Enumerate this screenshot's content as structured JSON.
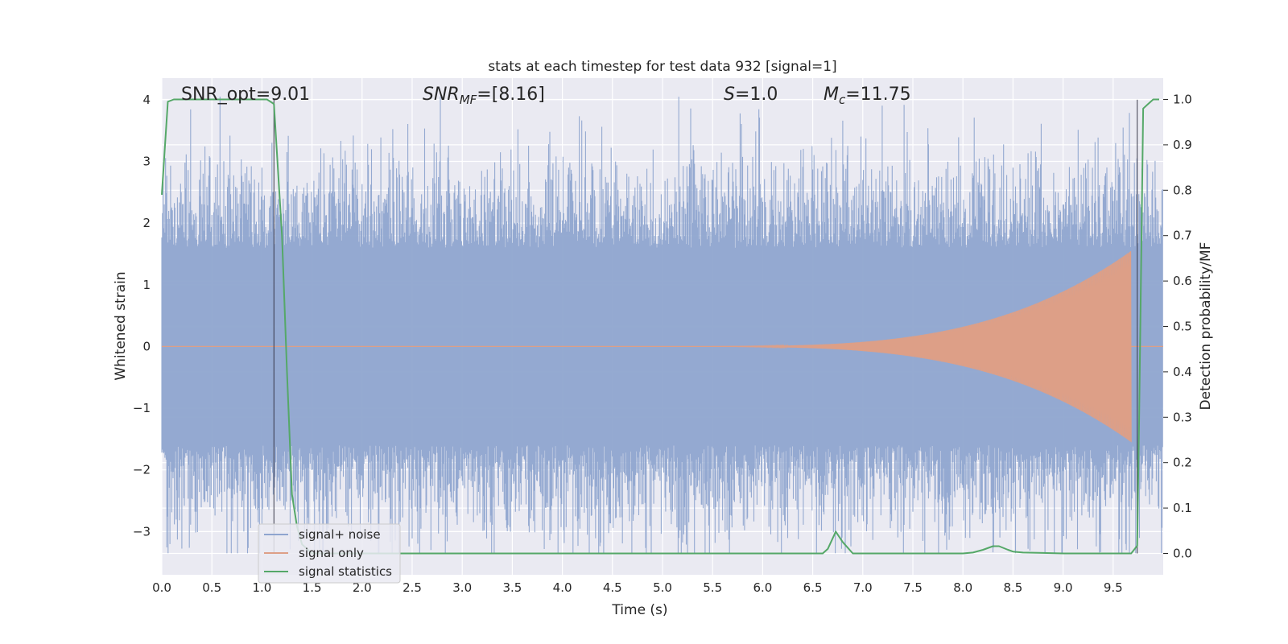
{
  "chart_data": {
    "type": "line",
    "title": "stats at each timestep for test data 932 [signal=1]",
    "xlabel": "Time (s)",
    "ylabel_left": "Whitened strain",
    "ylabel_right": "Detection probability/MF",
    "xlim": [
      0.0,
      10.0
    ],
    "ylim_left": [
      -3.7,
      4.35
    ],
    "ylim_right": [
      -0.047,
      1.047
    ],
    "x_ticks": [
      "0.0",
      "0.5",
      "1.0",
      "1.5",
      "2.0",
      "2.5",
      "3.0",
      "3.5",
      "4.0",
      "4.5",
      "5.0",
      "5.5",
      "6.0",
      "6.5",
      "7.0",
      "7.5",
      "8.0",
      "8.5",
      "9.0",
      "9.5"
    ],
    "y_ticks_left": [
      "4",
      "3",
      "2",
      "1",
      "0",
      "−1",
      "−2",
      "−3"
    ],
    "y_ticks_right": [
      "1.0",
      "0.9",
      "0.8",
      "0.7",
      "0.6",
      "0.5",
      "0.4",
      "0.3",
      "0.2",
      "0.1",
      "0.0"
    ],
    "grid": true,
    "legend_position": "lower-left",
    "annotations": {
      "snr_opt": "SNR_opt=9.01",
      "snr_mf_sym": "SNR",
      "snr_mf_sub": "MF",
      "snr_mf_val": "=[8.16]",
      "s_sym": "S",
      "s_val": "=1.0",
      "mc_sym": "M",
      "mc_sub": "c",
      "mc_val": "=11.75"
    },
    "vertical_lines_x": [
      1.12,
      9.74
    ],
    "series": [
      {
        "name": "signal+ noise",
        "axis": "left",
        "color": "#8fa5cf",
        "description_values": "noise envelope approx ±2.2 with peaks to about 4.0 and -3.3 across 0-10 s"
      },
      {
        "name": "signal only",
        "axis": "left",
        "color": "#dd9f87",
        "chirp": {
          "start": 5.5,
          "end": 9.68,
          "peak_amplitude": 1.5
        }
      },
      {
        "name": "signal statistics",
        "axis": "right",
        "color": "#55a868",
        "x": [
          0.0,
          0.06,
          0.12,
          0.2,
          0.5,
          0.8,
          1.0,
          1.05,
          1.12,
          1.2,
          1.25,
          1.3,
          1.35,
          1.4,
          1.5,
          2.0,
          3.0,
          4.0,
          5.0,
          6.0,
          6.6,
          6.65,
          6.73,
          6.8,
          6.9,
          7.0,
          7.5,
          8.0,
          8.1,
          8.2,
          8.3,
          8.36,
          8.45,
          8.5,
          8.6,
          8.8,
          9.0,
          9.5,
          9.68,
          9.74,
          9.76,
          9.8,
          9.85,
          9.9,
          9.96
        ],
        "y": [
          0.79,
          0.995,
          1.0,
          1.0,
          1.0,
          1.0,
          1.0,
          1.0,
          0.99,
          0.7,
          0.4,
          0.13,
          0.06,
          0.02,
          0.0,
          0.0,
          0.0,
          0.0,
          0.0,
          0.0,
          0.0,
          0.01,
          0.048,
          0.025,
          0.0,
          0.0,
          0.0,
          0.0,
          0.002,
          0.008,
          0.016,
          0.016,
          0.008,
          0.004,
          0.002,
          0.001,
          0.0,
          0.0,
          0.0,
          0.017,
          0.3,
          0.98,
          0.99,
          1.0,
          1.0
        ]
      }
    ]
  }
}
